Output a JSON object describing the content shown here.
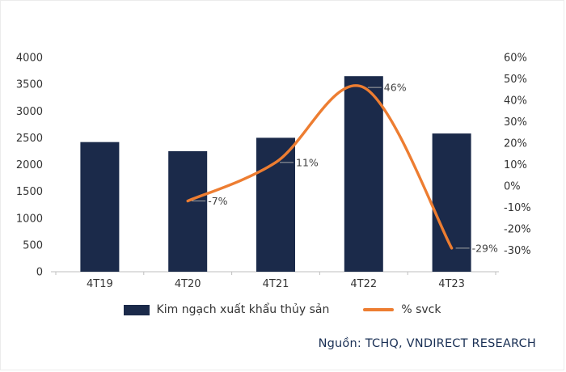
{
  "chart_data": {
    "type": "bar",
    "title": "",
    "categories": [
      "4T19",
      "4T20",
      "4T21",
      "4T22",
      "4T23"
    ],
    "series": [
      {
        "name": "Kim ngạch xuất khẩu thủy sản",
        "chart_type": "bar",
        "axis": "left",
        "color": "#1b2a4a",
        "values": [
          2420,
          2250,
          2500,
          3650,
          2580
        ]
      },
      {
        "name": "% svck",
        "chart_type": "line",
        "axis": "right",
        "color": "#ed7d31",
        "values": [
          null,
          -7,
          11,
          46,
          -29
        ],
        "point_labels": [
          null,
          "-7%",
          "11%",
          "46%",
          "-29%"
        ]
      }
    ],
    "left_axis": {
      "min": 0,
      "max": 4000,
      "tick_step": 500,
      "tick_labels": [
        "0",
        "500",
        "1000",
        "1500",
        "2000",
        "2500",
        "3000",
        "3500",
        "4000"
      ]
    },
    "right_axis": {
      "min": -40,
      "max": 60,
      "tick_values": [
        60,
        50,
        40,
        30,
        20,
        10,
        0,
        -10,
        -20,
        -30
      ],
      "tick_labels": [
        "60%",
        "50%",
        "40%",
        "30%",
        "20%",
        "10%",
        "0%",
        "-10%",
        "-20%",
        "-30%"
      ]
    },
    "grid": false,
    "legend_position": "bottom",
    "source": "Nguồn: TCHQ, VNDIRECT RESEARCH"
  }
}
